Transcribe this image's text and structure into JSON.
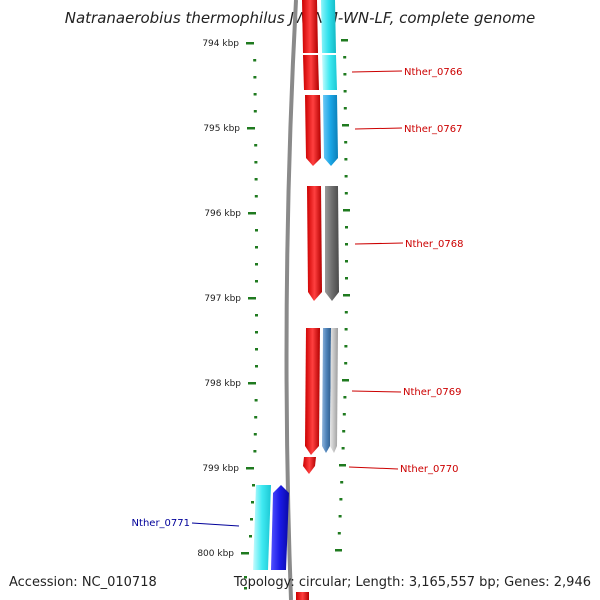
{
  "title": "Natranaerobius thermophilus JW/NM-WN-LF, complete genome",
  "footer": {
    "accession": "Accession: NC_010718",
    "summary": "Topology: circular; Length: 3,165,557 bp; Genes: 2,946"
  },
  "colors": {
    "forward_gene": "#ff1a1a",
    "cds_cyan": "#33e6f0",
    "cds_sky": "#1aa6e6",
    "cds_gray": "#6e6e6e",
    "cds_steel": "#4d82b8",
    "cds_silver": "#c8c8c8",
    "cds_blue": "#1a1ae6",
    "tick": "#1f7a1f",
    "label_forward": "#cc0000",
    "label_reverse": "#000099"
  },
  "scale": {
    "unit": "kbp",
    "ticks": [
      {
        "kbp": 794,
        "label": "794 kbp"
      },
      {
        "kbp": 795,
        "label": "795 kbp"
      },
      {
        "kbp": 796,
        "label": "796 kbp"
      },
      {
        "kbp": 797,
        "label": "797 kbp"
      },
      {
        "kbp": 798,
        "label": "798 kbp"
      },
      {
        "kbp": 799,
        "label": "799 kbp"
      },
      {
        "kbp": 800,
        "label": "800 kbp"
      }
    ]
  },
  "genes": [
    {
      "name": "Nther_0766",
      "strand": "forward"
    },
    {
      "name": "Nther_0767",
      "strand": "forward"
    },
    {
      "name": "Nther_0768",
      "strand": "forward"
    },
    {
      "name": "Nther_0769",
      "strand": "forward"
    },
    {
      "name": "Nther_0770",
      "strand": "forward"
    },
    {
      "name": "Nther_0771",
      "strand": "reverse"
    }
  ]
}
